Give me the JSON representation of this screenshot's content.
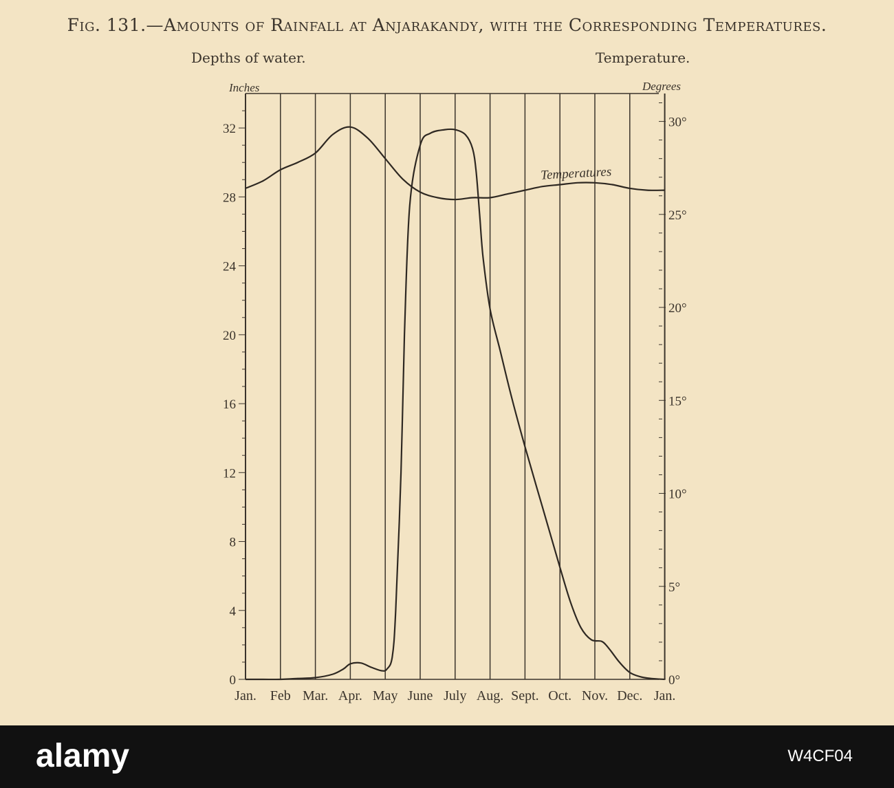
{
  "title": "Fig. 131.—Amounts of Rainfall at Anjarakandy, with the Corresponding Temperatures.",
  "left_axis_title": "Depths of water.",
  "right_axis_title": "Temperature.",
  "footer": {
    "watermark": "alamy",
    "stock_id": "W4CF04"
  },
  "chart_data": {
    "type": "line",
    "categories": [
      "Jan.",
      "Feb",
      "Mar.",
      "Apr.",
      "May",
      "June",
      "July",
      "Aug.",
      "Sept.",
      "Oct.",
      "Nov.",
      "Dec.",
      "Jan."
    ],
    "y_left": {
      "label": "Inches",
      "range": [
        0,
        34
      ],
      "ticks": [
        0,
        4,
        8,
        12,
        16,
        20,
        24,
        28,
        32
      ],
      "tick_labels": [
        "0",
        "4",
        "8",
        "12",
        "16",
        "20",
        "24",
        "28",
        "32"
      ]
    },
    "y_right": {
      "label": "Degrees",
      "range": [
        0,
        31.5
      ],
      "ticks": [
        0,
        5,
        10,
        15,
        20,
        25,
        30
      ],
      "tick_labels": [
        "0°",
        "5°",
        "10°",
        "15°",
        "20°",
        "25°",
        "30°"
      ]
    },
    "grid": "vertical",
    "series": [
      {
        "name": "Temperatures",
        "axis": "right",
        "x": [
          0,
          0.5,
          1,
          1.5,
          2,
          2.5,
          3,
          3.5,
          4,
          4.5,
          5,
          5.5,
          6,
          6.5,
          7,
          7.5,
          8,
          8.5,
          9,
          9.5,
          10,
          10.5,
          11,
          11.5,
          12
        ],
        "values": [
          26.4,
          26.8,
          27.4,
          27.8,
          28.3,
          29.3,
          29.7,
          29.1,
          28.0,
          26.9,
          26.2,
          25.9,
          25.8,
          25.9,
          25.9,
          26.1,
          26.3,
          26.5,
          26.6,
          26.7,
          26.7,
          26.6,
          26.4,
          26.3,
          26.3
        ]
      },
      {
        "name": "Rainfall",
        "axis": "left",
        "x": [
          0,
          0.5,
          1,
          1.5,
          2,
          2.5,
          2.8,
          3,
          3.3,
          3.6,
          3.9,
          4.05,
          4.2,
          4.3,
          4.45,
          4.55,
          4.7,
          5,
          5.3,
          5.7,
          6,
          6.3,
          6.5,
          6.6,
          6.7,
          6.8,
          7,
          7.3,
          7.6,
          8,
          8.5,
          9,
          9.3,
          9.6,
          9.9,
          10.2,
          10.4,
          10.7,
          11,
          11.3,
          11.6,
          12
        ],
        "values": [
          0,
          0,
          0,
          0.05,
          0.1,
          0.3,
          0.6,
          0.9,
          0.95,
          0.7,
          0.5,
          0.6,
          1.3,
          4,
          12,
          20,
          27.5,
          31,
          31.7,
          31.9,
          31.9,
          31.6,
          30.8,
          29.5,
          27,
          24.5,
          21.5,
          19,
          16.5,
          13.5,
          10,
          6.5,
          4.5,
          3,
          2.3,
          2.2,
          1.8,
          1,
          0.4,
          0.15,
          0.05,
          0
        ]
      }
    ],
    "annotations": [
      "Temperatures"
    ]
  }
}
